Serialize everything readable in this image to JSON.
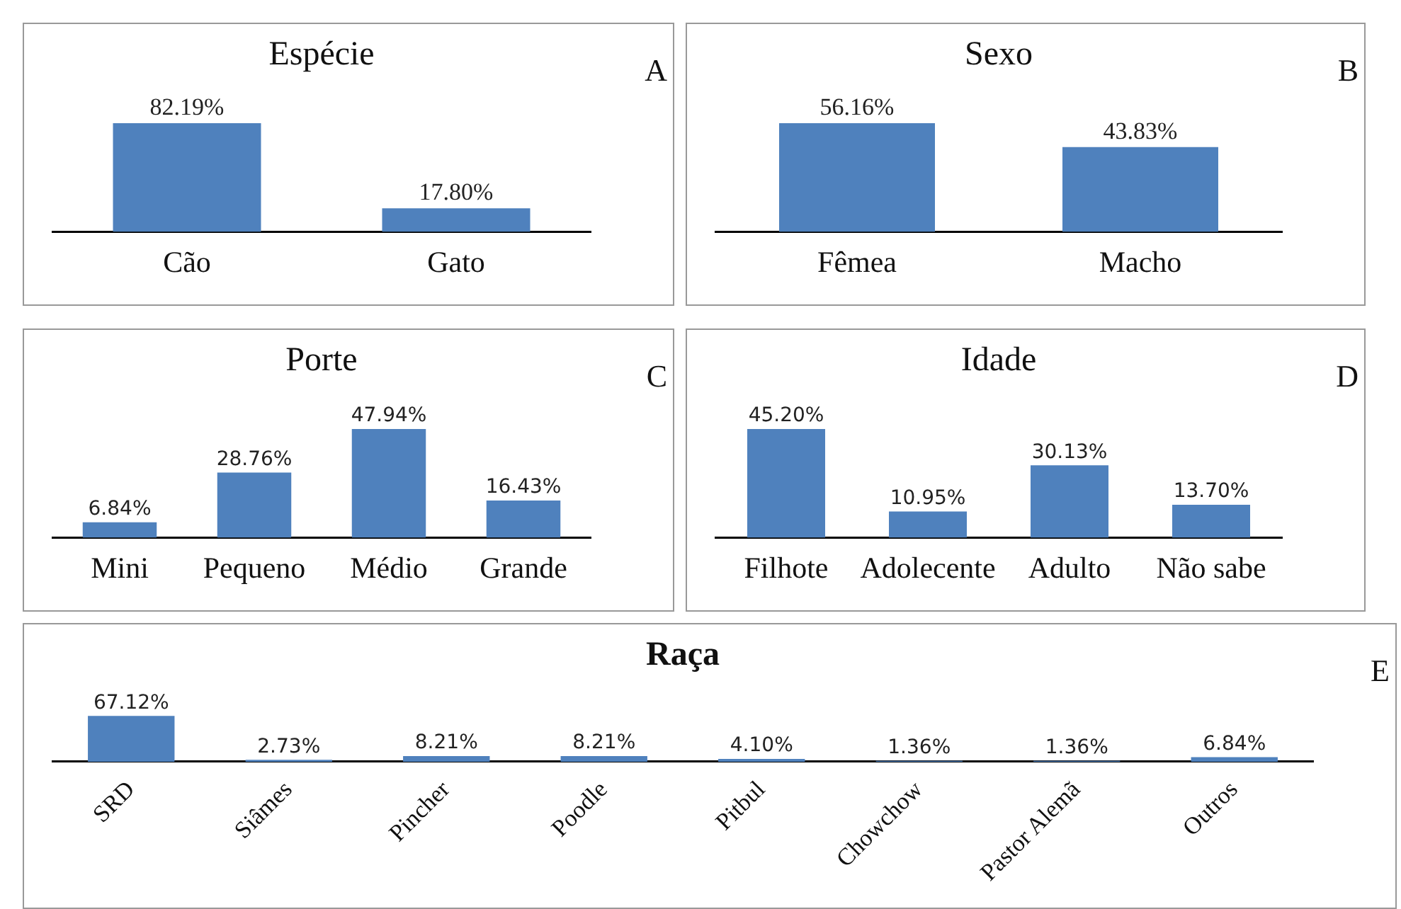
{
  "chart_data": [
    {
      "type": "bar",
      "title": "Espécie",
      "categories": [
        "Cão",
        "Gato"
      ],
      "values": [
        82.19,
        17.8
      ],
      "value_labels": [
        "82.19%",
        "17.80%"
      ],
      "color": "#4f81bd",
      "annotations": [
        "A"
      ]
    },
    {
      "type": "bar",
      "title": "Sexo",
      "categories": [
        "Fêmea",
        "Macho"
      ],
      "values": [
        56.16,
        43.83
      ],
      "value_labels": [
        "56.16%",
        "43.83%"
      ],
      "color": "#4f81bd",
      "annotations": [
        "B"
      ]
    },
    {
      "type": "bar",
      "title": "Porte",
      "categories": [
        "Mini",
        "Pequeno",
        "Médio",
        "Grande"
      ],
      "values": [
        6.84,
        28.76,
        47.94,
        16.43
      ],
      "value_labels": [
        "6.84%",
        "28.76%",
        "47.94%",
        "16.43%"
      ],
      "color": "#4f81bd",
      "annotations": [
        "C"
      ]
    },
    {
      "type": "bar",
      "title": "Idade",
      "categories": [
        "Filhote",
        "Adolecente",
        "Adulto",
        "Não sabe"
      ],
      "values": [
        45.2,
        10.95,
        30.13,
        13.7
      ],
      "value_labels": [
        "45.20%",
        "10.95%",
        "30.13%",
        "13.70%"
      ],
      "color": "#4f81bd",
      "annotations": [
        "D"
      ]
    },
    {
      "type": "bar",
      "title": "Raça",
      "categories": [
        "SRD",
        "Siâmes",
        "Pincher",
        "Poodle",
        "Pitbul",
        "Chowchow",
        "Pastor Alemã",
        "Outros"
      ],
      "values": [
        67.12,
        2.73,
        8.21,
        8.21,
        4.1,
        1.36,
        1.36,
        6.84
      ],
      "value_labels": [
        "67.12%",
        "2.73%",
        "8.21%",
        "8.21%",
        "4.10%",
        "1.36%",
        "1.36%",
        "6.84%"
      ],
      "color": "#4f81bd",
      "annotations": [
        "E"
      ]
    }
  ]
}
